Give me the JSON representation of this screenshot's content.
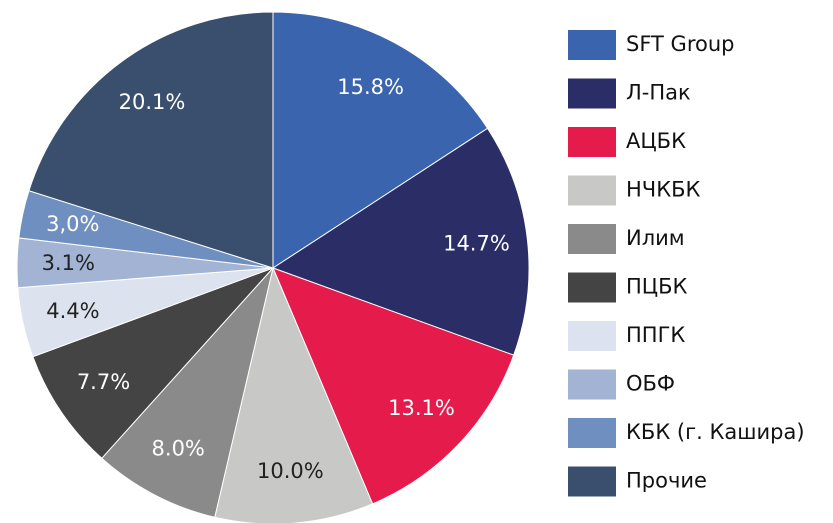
{
  "chart_data": {
    "type": "pie",
    "categories": [
      "SFT Group",
      "Л-Пак",
      "АЦБК",
      "НЧКБК",
      "Илим",
      "ПЦБК",
      "ППГК",
      "ОБФ",
      "КБК (г. Кашира)",
      "Прочие"
    ],
    "values": [
      15.8,
      14.7,
      13.1,
      10.0,
      8.0,
      7.7,
      4.4,
      3.1,
      3.0,
      20.1
    ],
    "value_labels": [
      "15.8%",
      "14.7%",
      "13.1%",
      "10.0%",
      "8.0%",
      "7.7%",
      "4.4%",
      "3.1%",
      "3,0%",
      "20.1%"
    ],
    "colors": [
      "#3a64ae",
      "#2b2e66",
      "#e51b4c",
      "#c8c8c6",
      "#8a8a8a",
      "#444444",
      "#dde3ee",
      "#a2b3d3",
      "#6f8fc0",
      "#3a4f6e"
    ],
    "legend": "right"
  }
}
